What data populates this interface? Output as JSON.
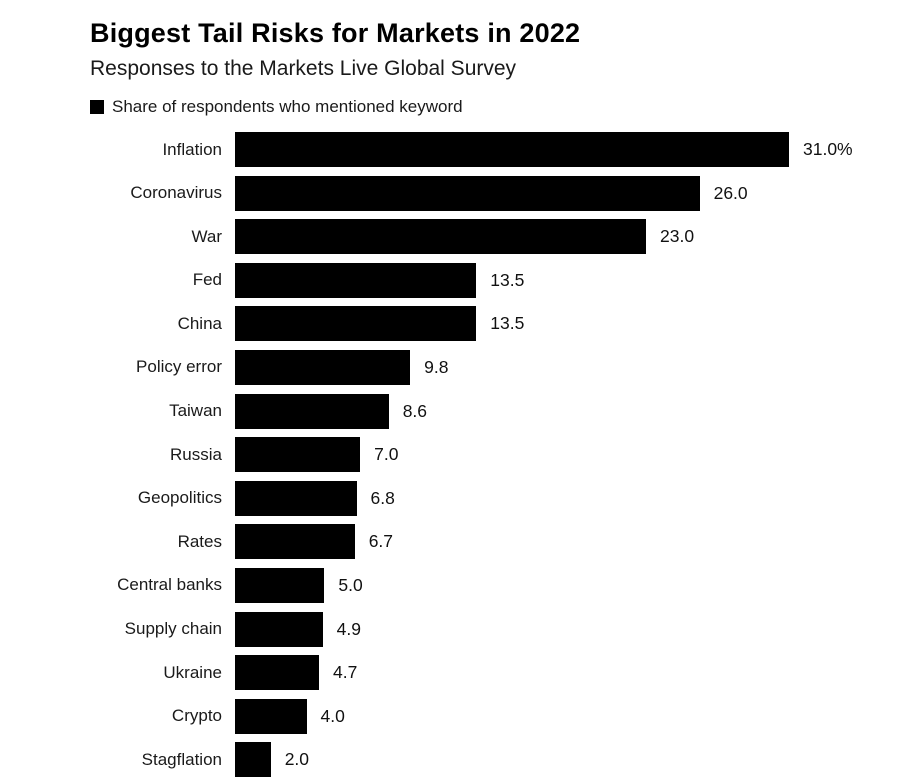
{
  "chart": {
    "title": "Biggest Tail Risks for Markets in 2022",
    "subtitle": "Responses to the Markets Live Global Survey",
    "legend_label": "Share of respondents who mentioned keyword",
    "bar_color": "#000000",
    "background_color": "#ffffff"
  },
  "chart_data": {
    "type": "bar",
    "orientation": "horizontal",
    "title": "Biggest Tail Risks for Markets in 2022",
    "subtitle": "Responses to the Markets Live Global Survey",
    "xlabel": "",
    "ylabel": "",
    "xlim": [
      0,
      31
    ],
    "grid": false,
    "legend": [
      "Share of respondents who mentioned keyword"
    ],
    "legend_position": "top-left",
    "categories": [
      "Inflation",
      "Coronavirus",
      "War",
      "Fed",
      "China",
      "Policy error",
      "Taiwan",
      "Russia",
      "Geopolitics",
      "Rates",
      "Central banks",
      "Supply chain",
      "Ukraine",
      "Crypto",
      "Stagflation"
    ],
    "values": [
      31.0,
      26.0,
      23.0,
      13.5,
      13.5,
      9.8,
      8.6,
      7.0,
      6.8,
      6.7,
      5.0,
      4.9,
      4.7,
      4.0,
      2.0
    ],
    "value_labels": [
      "31.0%",
      "26.0",
      "23.0",
      "13.5",
      "13.5",
      "9.8",
      "8.6",
      "7.0",
      "6.8",
      "6.7",
      "5.0",
      "4.9",
      "4.7",
      "4.0",
      "2.0"
    ]
  }
}
